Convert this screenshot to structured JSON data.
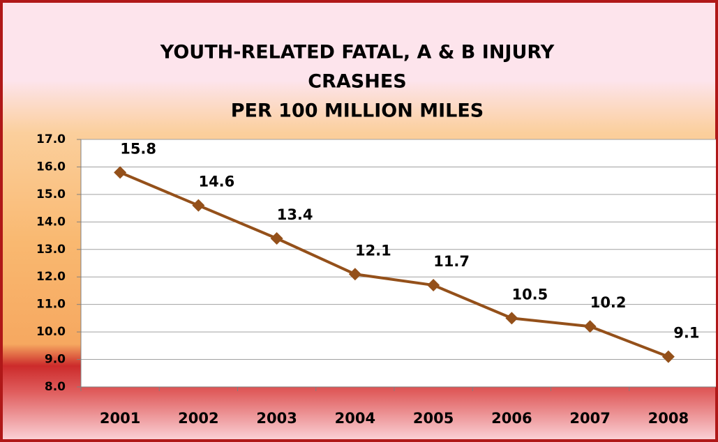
{
  "chart_data": {
    "type": "line",
    "title": [
      "YOUTH-RELATED FATAL, A  & B INJURY",
      "CRASHES",
      "PER 100 MILLION MILES"
    ],
    "categories": [
      "2001",
      "2002",
      "2003",
      "2004",
      "2005",
      "2006",
      "2007",
      "2008"
    ],
    "values": [
      15.8,
      14.6,
      13.4,
      12.1,
      11.7,
      10.5,
      10.2,
      9.1
    ],
    "color": "#94501a",
    "ylim": [
      8,
      17
    ],
    "yticks": [
      {
        "value": 8,
        "label": "8.0"
      },
      {
        "value": 9,
        "label": "9.0"
      },
      {
        "value": 10,
        "label": "10.0"
      },
      {
        "value": 11,
        "label": "11.0"
      },
      {
        "value": 12,
        "label": "12.0"
      },
      {
        "value": 13,
        "label": "13.0"
      },
      {
        "value": 14,
        "label": "14.0"
      },
      {
        "value": 15,
        "label": "15.0"
      },
      {
        "value": 16,
        "label": "16.0"
      },
      {
        "value": 17,
        "label": "17.0"
      }
    ],
    "grid": true
  }
}
